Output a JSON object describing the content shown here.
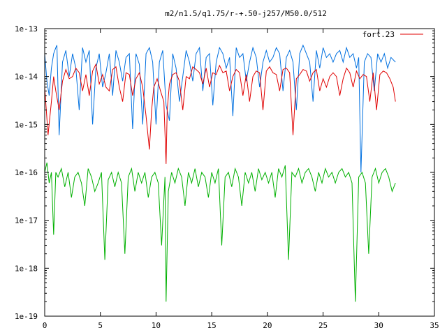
{
  "chart_data": {
    "type": "line",
    "title": "m2/n1.5/q1.75/r-+.50-j257/M50.0/512",
    "xlabel": "",
    "ylabel": "",
    "xlim": [
      0,
      35
    ],
    "ylim": [
      1e-19,
      1e-13
    ],
    "yscale": "log",
    "grid": false,
    "legend_position": "top-right",
    "x_ticks": [
      0,
      5,
      10,
      15,
      20,
      25,
      30,
      35
    ],
    "x_tick_labels": [
      "0",
      "5",
      "10",
      "15",
      "20",
      "25",
      "30",
      "35"
    ],
    "y_ticks": [
      1e-19,
      1e-18,
      1e-17,
      1e-16,
      1e-15,
      1e-14,
      1e-13
    ],
    "y_tick_labels": [
      "1e-19",
      "1e-18",
      "1e-17",
      "1e-16",
      "1e-15",
      "1e-14",
      "1e-13"
    ],
    "series": [
      {
        "name": "fort.23",
        "color": "#e00000",
        "x": [
          0.0,
          0.3,
          0.6,
          0.8,
          1.0,
          1.3,
          1.6,
          1.9,
          2.2,
          2.5,
          2.8,
          3.1,
          3.4,
          3.7,
          4.0,
          4.3,
          4.6,
          4.9,
          5.2,
          5.5,
          5.8,
          6.1,
          6.4,
          6.7,
          7.0,
          7.3,
          7.6,
          7.9,
          8.2,
          8.5,
          8.8,
          9.1,
          9.4,
          9.6,
          9.8,
          10.1,
          10.4,
          10.7,
          10.9,
          11.0,
          11.2,
          11.5,
          11.8,
          12.1,
          12.4,
          12.7,
          13.0,
          13.3,
          13.6,
          13.9,
          14.2,
          14.5,
          14.8,
          15.1,
          15.4,
          15.7,
          16.0,
          16.3,
          16.6,
          16.9,
          17.2,
          17.5,
          17.8,
          18.1,
          18.4,
          18.7,
          19.0,
          19.3,
          19.6,
          19.9,
          20.2,
          20.5,
          20.8,
          21.1,
          21.4,
          21.7,
          22.0,
          22.3,
          22.6,
          22.9,
          23.2,
          23.5,
          23.8,
          24.1,
          24.4,
          24.7,
          25.0,
          25.3,
          25.6,
          25.9,
          26.2,
          26.5,
          26.8,
          27.1,
          27.4,
          27.7,
          28.0,
          28.3,
          28.6,
          28.9,
          29.2,
          29.5,
          29.8,
          30.1,
          30.4,
          30.7,
          31.0,
          31.3,
          31.5
        ],
        "y": [
          6e-15,
          6e-16,
          3e-15,
          1e-14,
          5e-15,
          2e-15,
          8e-15,
          1.4e-14,
          9e-15,
          1e-14,
          1.5e-14,
          1.2e-14,
          5e-15,
          1.1e-14,
          4e-15,
          1.3e-14,
          1.8e-14,
          7e-15,
          1.1e-14,
          6e-15,
          5e-15,
          1.4e-14,
          1.6e-14,
          6e-15,
          3e-15,
          1.2e-14,
          1.1e-14,
          4e-15,
          9e-15,
          1.2e-14,
          6e-15,
          1.5e-15,
          3e-16,
          2e-15,
          6e-15,
          9e-15,
          5e-15,
          3e-15,
          1.5e-16,
          2e-15,
          7e-15,
          1.1e-14,
          1.2e-14,
          8e-15,
          2e-15,
          1e-14,
          9e-15,
          1.6e-14,
          1.4e-14,
          1.2e-14,
          7e-15,
          1.5e-14,
          6e-15,
          1.2e-14,
          1.1e-14,
          1.7e-14,
          1.2e-14,
          1.3e-14,
          5e-15,
          1e-14,
          1.4e-14,
          1.2e-14,
          4e-15,
          1.1e-14,
          3e-15,
          1e-14,
          1.3e-14,
          1.2e-14,
          2e-15,
          1.3e-14,
          1.6e-14,
          1.2e-14,
          1.1e-14,
          5e-15,
          1.4e-14,
          1.5e-14,
          1.2e-14,
          6e-16,
          9e-15,
          1.1e-14,
          1.4e-14,
          1.3e-14,
          8e-15,
          1.2e-14,
          1.4e-14,
          5e-15,
          9e-15,
          6e-15,
          1e-14,
          1.2e-14,
          1e-14,
          4e-15,
          9e-15,
          1.5e-14,
          1.2e-14,
          6e-15,
          1.3e-14,
          9e-15,
          1.1e-14,
          1e-14,
          3e-15,
          1.2e-14,
          2e-15,
          1.1e-14,
          1.3e-14,
          1.2e-14,
          9e-15,
          6e-15,
          3e-15
        ]
      },
      {
        "color": "#0070e0",
        "x": [
          0.0,
          0.2,
          0.4,
          0.6,
          0.8,
          1.0,
          1.1,
          1.3,
          1.6,
          1.9,
          2.2,
          2.5,
          2.8,
          3.1,
          3.4,
          3.7,
          4.0,
          4.3,
          4.6,
          4.9,
          5.2,
          5.5,
          5.8,
          6.1,
          6.4,
          6.7,
          7.0,
          7.3,
          7.6,
          7.9,
          8.2,
          8.5,
          8.8,
          9.1,
          9.4,
          9.7,
          10.0,
          10.3,
          10.6,
          10.9,
          11.2,
          11.5,
          11.8,
          12.1,
          12.4,
          12.7,
          13.0,
          13.3,
          13.6,
          13.9,
          14.2,
          14.5,
          14.8,
          15.1,
          15.4,
          15.7,
          16.0,
          16.3,
          16.6,
          16.9,
          17.2,
          17.5,
          17.8,
          18.1,
          18.4,
          18.7,
          19.0,
          19.3,
          19.6,
          19.9,
          20.2,
          20.5,
          20.8,
          21.1,
          21.4,
          21.7,
          22.0,
          22.3,
          22.6,
          22.9,
          23.2,
          23.5,
          23.8,
          24.1,
          24.4,
          24.7,
          25.0,
          25.3,
          25.6,
          25.9,
          26.2,
          26.5,
          26.8,
          27.1,
          27.4,
          27.7,
          28.0,
          28.2,
          28.4,
          28.7,
          29.0,
          29.3,
          29.6,
          29.9,
          30.2,
          30.5,
          30.8,
          31.1,
          31.5
        ],
        "y": [
          3e-14,
          8e-15,
          4e-15,
          1.5e-14,
          3e-14,
          4e-14,
          4.5e-14,
          6e-16,
          2e-14,
          3.5e-14,
          1e-14,
          3e-14,
          1.5e-14,
          2e-15,
          4e-14,
          2e-14,
          3.5e-14,
          1e-15,
          1.5e-14,
          3e-14,
          6e-15,
          1.2e-14,
          3e-14,
          4e-15,
          3.5e-14,
          2e-14,
          8e-15,
          2.5e-14,
          3e-14,
          8e-16,
          3e-14,
          1.8e-14,
          1e-15,
          3e-14,
          4e-14,
          2e-14,
          1e-15,
          2e-14,
          3.5e-14,
          2.5e-15,
          1.2e-15,
          3e-14,
          1.5e-14,
          3e-15,
          1e-14,
          3.5e-14,
          2e-14,
          8e-15,
          3e-14,
          4e-14,
          5e-15,
          2.5e-14,
          3e-14,
          2.5e-15,
          2e-14,
          4e-14,
          3e-14,
          1.5e-14,
          2.5e-14,
          1.5e-15,
          4e-14,
          2.5e-14,
          3e-14,
          8e-15,
          2e-14,
          4e-14,
          2.5e-14,
          6e-15,
          2e-14,
          3.5e-14,
          2e-14,
          2.5e-14,
          4e-14,
          3e-14,
          5e-15,
          2.5e-14,
          3.5e-14,
          2e-14,
          2e-15,
          3e-14,
          4.5e-14,
          3e-14,
          2e-14,
          3e-15,
          3.5e-14,
          1.5e-14,
          4e-14,
          2.5e-14,
          3e-14,
          2e-14,
          3e-14,
          3.5e-14,
          2e-14,
          4e-14,
          2.5e-14,
          3e-14,
          1.5e-14,
          2.5e-14,
          1e-16,
          2e-14,
          3e-14,
          2.5e-14,
          5e-15,
          3e-14,
          2e-14,
          3e-14,
          1.5e-14,
          2.5e-14,
          2e-14
        ]
      },
      {
        "color": "#00b000",
        "x": [
          0.0,
          0.2,
          0.4,
          0.6,
          0.8,
          1.0,
          1.2,
          1.5,
          1.8,
          2.1,
          2.4,
          2.7,
          3.0,
          3.3,
          3.6,
          3.9,
          4.2,
          4.5,
          4.8,
          5.1,
          5.4,
          5.7,
          6.0,
          6.3,
          6.6,
          6.9,
          7.2,
          7.5,
          7.8,
          8.1,
          8.4,
          8.7,
          9.0,
          9.3,
          9.6,
          9.9,
          10.2,
          10.5,
          10.8,
          10.9,
          11.1,
          11.4,
          11.7,
          12.0,
          12.3,
          12.6,
          12.9,
          13.2,
          13.5,
          13.8,
          14.1,
          14.4,
          14.7,
          15.0,
          15.3,
          15.6,
          15.9,
          16.2,
          16.5,
          16.8,
          17.1,
          17.4,
          17.7,
          18.0,
          18.3,
          18.6,
          18.9,
          19.2,
          19.5,
          19.8,
          20.1,
          20.4,
          20.7,
          21.0,
          21.3,
          21.6,
          21.9,
          22.2,
          22.5,
          22.8,
          23.1,
          23.4,
          23.7,
          24.0,
          24.3,
          24.6,
          24.9,
          25.2,
          25.5,
          25.8,
          26.1,
          26.4,
          26.7,
          27.0,
          27.3,
          27.6,
          27.9,
          28.2,
          28.5,
          28.8,
          29.1,
          29.4,
          29.7,
          30.0,
          30.3,
          30.6,
          30.9,
          31.2,
          31.5
        ],
        "y": [
          1e-16,
          1.6e-16,
          6e-17,
          1e-16,
          5e-18,
          1e-16,
          8e-17,
          1.2e-16,
          5e-17,
          1e-16,
          3e-17,
          8e-17,
          1e-16,
          6e-17,
          2e-17,
          1.2e-16,
          8e-17,
          4e-17,
          6e-17,
          1e-16,
          1.5e-18,
          7e-17,
          1e-16,
          5e-17,
          1e-16,
          6e-17,
          2e-18,
          8e-17,
          1.2e-16,
          4e-17,
          1e-16,
          6e-17,
          1e-16,
          3e-17,
          8e-17,
          1e-16,
          6e-17,
          3e-18,
          8e-17,
          2e-19,
          4e-17,
          1e-16,
          6e-17,
          1.2e-16,
          8e-17,
          2e-17,
          1e-16,
          6e-17,
          1.2e-16,
          5e-17,
          1e-16,
          8e-17,
          3e-17,
          1e-16,
          6e-17,
          1.2e-16,
          3e-18,
          8e-17,
          1e-16,
          5e-17,
          1.2e-16,
          8e-17,
          2e-17,
          1e-16,
          6e-17,
          1e-16,
          4e-17,
          1.2e-16,
          7e-17,
          1e-16,
          6e-17,
          1e-16,
          3e-17,
          1.2e-16,
          8e-17,
          1.4e-16,
          1.5e-18,
          1e-16,
          8e-17,
          1.2e-16,
          6e-17,
          1e-16,
          1.2e-16,
          8e-17,
          4e-17,
          1e-16,
          6e-17,
          1.2e-16,
          8e-17,
          1e-16,
          6e-17,
          1e-16,
          1.2e-16,
          8e-17,
          1e-16,
          6e-17,
          2e-19,
          8e-17,
          1e-16,
          6e-17,
          2e-18,
          8e-17,
          1.2e-16,
          6e-17,
          1e-16,
          1.2e-16,
          8e-17,
          4e-17,
          6e-17
        ]
      }
    ]
  }
}
